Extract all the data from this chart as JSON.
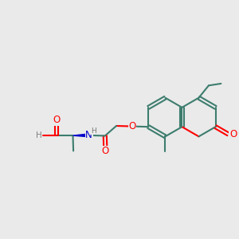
{
  "bg_color": "#eaeaea",
  "bond_color": "#3d7d6e",
  "oxygen_color": "#ff0000",
  "nitrogen_color": "#0000cc",
  "hydrogen_color": "#808080",
  "wedge_color": "#0000cc",
  "line_width": 1.5,
  "figsize": [
    3.0,
    3.0
  ],
  "dpi": 100,
  "xlim": [
    0,
    10
  ],
  "ylim": [
    0,
    10
  ]
}
